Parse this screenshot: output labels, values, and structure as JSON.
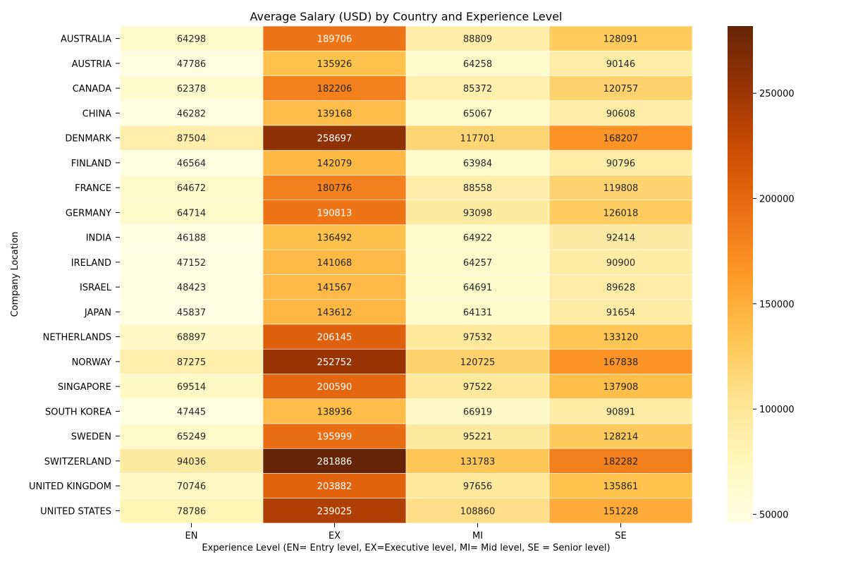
{
  "chart_data": {
    "type": "heatmap",
    "title": "Average Salary (USD) by Country and Experience Level",
    "xlabel": "Experience Level (EN= Entry level, EX=Executive level, MI= Mid level, SE = Senior level)",
    "ylabel": "Company Location",
    "x_categories": [
      "EN",
      "EX",
      "MI",
      "SE"
    ],
    "y_categories": [
      "AUSTRALIA",
      "AUSTRIA",
      "CANADA",
      "CHINA",
      "DENMARK",
      "FINLAND",
      "FRANCE",
      "GERMANY",
      "INDIA",
      "IRELAND",
      "ISRAEL",
      "JAPAN",
      "NETHERLANDS",
      "NORWAY",
      "SINGAPORE",
      "SOUTH KOREA",
      "SWEDEN",
      "SWITZERLAND",
      "UNITED KINGDOM",
      "UNITED STATES"
    ],
    "values": [
      [
        64298,
        189706,
        88809,
        128091
      ],
      [
        47786,
        135926,
        64258,
        90146
      ],
      [
        62378,
        182206,
        85372,
        120757
      ],
      [
        46282,
        139168,
        65067,
        90608
      ],
      [
        87504,
        258697,
        117701,
        168207
      ],
      [
        46564,
        142079,
        63984,
        90796
      ],
      [
        64672,
        180776,
        88558,
        119808
      ],
      [
        64714,
        190813,
        93098,
        126018
      ],
      [
        46188,
        136492,
        64922,
        92414
      ],
      [
        47152,
        141068,
        64257,
        90900
      ],
      [
        48423,
        141567,
        64691,
        89628
      ],
      [
        45837,
        143612,
        64131,
        91654
      ],
      [
        68897,
        206145,
        97532,
        133120
      ],
      [
        87275,
        252752,
        120725,
        167838
      ],
      [
        69514,
        200590,
        97522,
        137908
      ],
      [
        47445,
        138936,
        66919,
        90891
      ],
      [
        65249,
        195999,
        95221,
        128214
      ],
      [
        94036,
        281886,
        131783,
        182282
      ],
      [
        70746,
        203882,
        97656,
        135861
      ],
      [
        78786,
        239025,
        108860,
        151228
      ]
    ],
    "colormap": "YlOrBr",
    "colorbar": {
      "range": [
        45837,
        281886
      ],
      "ticks": [
        "50000",
        "100000",
        "150000",
        "200000",
        "250000"
      ]
    },
    "annotations": true,
    "grid": false
  }
}
